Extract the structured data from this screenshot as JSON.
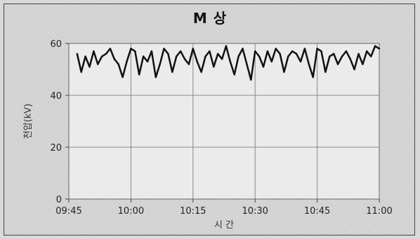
{
  "chart_data": {
    "type": "line",
    "title": "M 상",
    "xlabel": "시 간",
    "ylabel": "전압(kV)",
    "x_ticks": [
      "09:45",
      "10:00",
      "10:15",
      "10:30",
      "10:45",
      "11:00"
    ],
    "y_ticks": [
      0,
      20,
      40,
      60
    ],
    "xlim": [
      "09:45",
      "11:00"
    ],
    "ylim": [
      0,
      60
    ],
    "grid": true,
    "series": [
      {
        "color": "#111111",
        "x": [
          "09:47",
          "09:48",
          "09:49",
          "09:50",
          "09:51",
          "09:52",
          "09:53",
          "09:54",
          "09:55",
          "09:56",
          "09:57",
          "09:58",
          "09:59",
          "10:00",
          "10:01",
          "10:02",
          "10:03",
          "10:04",
          "10:05",
          "10:06",
          "10:07",
          "10:08",
          "10:09",
          "10:10",
          "10:11",
          "10:12",
          "10:13",
          "10:14",
          "10:15",
          "10:16",
          "10:17",
          "10:18",
          "10:19",
          "10:20",
          "10:21",
          "10:22",
          "10:23",
          "10:24",
          "10:25",
          "10:26",
          "10:27",
          "10:28",
          "10:29",
          "10:30",
          "10:31",
          "10:32",
          "10:33",
          "10:34",
          "10:35",
          "10:36",
          "10:37",
          "10:38",
          "10:39",
          "10:40",
          "10:41",
          "10:42",
          "10:43",
          "10:44",
          "10:45",
          "10:46",
          "10:47",
          "10:48",
          "10:49",
          "10:50",
          "10:51",
          "10:52",
          "10:53",
          "10:54",
          "10:55",
          "10:56",
          "10:57",
          "10:58",
          "10:59",
          "11:00"
        ],
        "values": [
          56,
          49,
          55,
          51,
          57,
          52,
          55,
          56,
          58,
          54,
          52,
          47,
          53,
          58,
          57,
          48,
          55,
          53,
          57,
          47,
          52,
          58,
          56,
          49,
          55,
          57,
          54,
          52,
          58,
          53,
          49,
          55,
          57,
          51,
          56,
          54,
          59,
          53,
          48,
          55,
          58,
          52,
          46,
          57,
          55,
          51,
          57,
          53,
          58,
          56,
          49,
          55,
          57,
          56,
          53,
          58,
          52,
          47,
          58,
          57,
          49,
          55,
          56,
          52,
          55,
          57,
          54,
          50,
          56,
          52,
          57,
          55,
          59,
          58
        ]
      }
    ]
  }
}
